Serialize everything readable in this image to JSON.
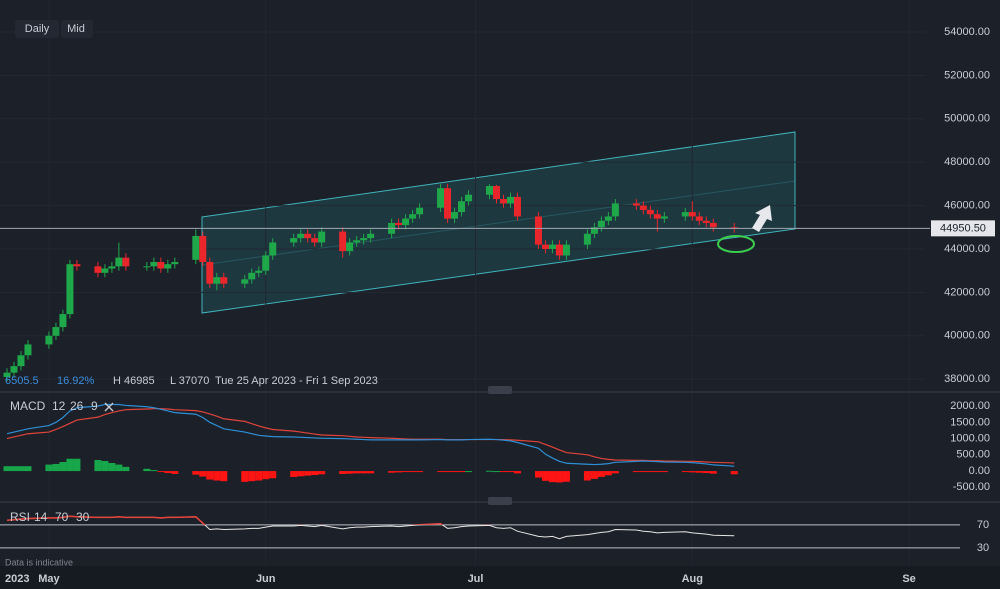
{
  "chart_data": [
    {
      "type": "candlestick",
      "interval_buttons": [
        "Daily",
        "Mid"
      ],
      "legend_values": [
        "6505.5",
        "16.92%",
        "H 46985",
        "L 37070"
      ],
      "date_range": "Tue 25 Apr 2023 - Fri 1 Sep 2023",
      "year_label": "2023",
      "note": "Data is indicative",
      "x": [
        115,
        116,
        117,
        118,
        121,
        122,
        123,
        124,
        125,
        128,
        129,
        130,
        131,
        132,
        135,
        136,
        137,
        138,
        139,
        142,
        143,
        144,
        145,
        146,
        149,
        150,
        151,
        152,
        153,
        156,
        157,
        158,
        159,
        160,
        163,
        164,
        165,
        166,
        167,
        170,
        171,
        172,
        173,
        174,
        177,
        178,
        179,
        180,
        181,
        184,
        185,
        186,
        187,
        188,
        191,
        192,
        193,
        194,
        195,
        198,
        199,
        200,
        201,
        202,
        205,
        206,
        207,
        208,
        209,
        212,
        213,
        214,
        215,
        216,
        219
      ],
      "open": [
        38100,
        38300,
        38600,
        39100,
        39600,
        40000,
        40400,
        41000,
        43300,
        43200,
        42900,
        43100,
        43200,
        43600,
        43200,
        43200,
        43400,
        43100,
        43300,
        43500,
        44600,
        43400,
        42400,
        42700,
        42400,
        42600,
        42900,
        43000,
        43700,
        44300,
        44500,
        44700,
        44500,
        44300,
        44800,
        43900,
        44300,
        44400,
        44500,
        44700,
        45200,
        45100,
        45400,
        45600,
        45900,
        46800,
        45400,
        45700,
        46200,
        46500,
        46900,
        46300,
        46100,
        46400,
        45500,
        44200,
        44000,
        44200,
        43700,
        44200,
        44700,
        45000,
        45300,
        45500,
        46100,
        46000,
        45800,
        45600,
        45400,
        45500,
        45700,
        45500,
        45300,
        45200,
        45000
      ],
      "high": [
        38500,
        38800,
        39300,
        39800,
        40200,
        40600,
        41200,
        43500,
        43500,
        43400,
        43300,
        43400,
        44300,
        43800,
        43400,
        43600,
        43600,
        43500,
        43600,
        44900,
        44800,
        43600,
        42900,
        42900,
        42800,
        43100,
        43200,
        43900,
        44500,
        44700,
        44900,
        44900,
        44700,
        45000,
        45000,
        44500,
        44600,
        44700,
        44900,
        45400,
        45400,
        45600,
        45800,
        46100,
        47000,
        47000,
        45900,
        46400,
        46700,
        46985,
        46950,
        46500,
        46600,
        46600,
        45700,
        44400,
        44400,
        44400,
        44400,
        44900,
        45200,
        45500,
        45700,
        46300,
        46300,
        46200,
        46000,
        45800,
        45700,
        45900,
        46200,
        45700,
        45500,
        45400,
        45200
      ],
      "low": [
        37900,
        38100,
        38400,
        38900,
        39400,
        39800,
        40200,
        40800,
        43000,
        42700,
        42700,
        42900,
        43000,
        43000,
        43000,
        43000,
        42900,
        42900,
        43100,
        43300,
        43200,
        42200,
        42100,
        42200,
        42200,
        42400,
        42700,
        42800,
        43500,
        44100,
        44300,
        44300,
        44100,
        44100,
        43600,
        43700,
        44100,
        44200,
        44300,
        44500,
        44900,
        44900,
        45200,
        45400,
        45700,
        45200,
        45200,
        45500,
        46000,
        46300,
        46100,
        45900,
        45900,
        45300,
        44000,
        43800,
        43800,
        43500,
        43500,
        44000,
        44500,
        44800,
        45100,
        45300,
        45800,
        45600,
        45400,
        44800,
        45200,
        45300,
        45300,
        45100,
        45000,
        44800,
        44750
      ],
      "close": [
        38300,
        38600,
        39100,
        39600,
        40000,
        40400,
        41000,
        43300,
        43200,
        42900,
        43100,
        43200,
        43600,
        43200,
        43200,
        43400,
        43100,
        43300,
        43400,
        44600,
        43400,
        42400,
        42700,
        42400,
        42600,
        42900,
        43000,
        43700,
        44300,
        44500,
        44700,
        44500,
        44300,
        44800,
        43900,
        44300,
        44400,
        44500,
        44700,
        45200,
        45100,
        45400,
        45600,
        45900,
        46800,
        45400,
        45700,
        46200,
        46500,
        46900,
        46300,
        46100,
        46400,
        45500,
        44200,
        44000,
        44200,
        43700,
        44200,
        44700,
        45000,
        45300,
        45500,
        46100,
        46000,
        45800,
        45600,
        45400,
        45500,
        45700,
        45500,
        45300,
        45200,
        45000,
        44950
      ],
      "up_color": "#1fa84a",
      "down_color": "#e8262b",
      "last_price": {
        "value": 44950.5,
        "label": "44950.50"
      },
      "xlim": [
        114,
        257
      ],
      "xticks": [
        {
          "value": 121,
          "label": "May"
        },
        {
          "value": 152,
          "label": "Jun"
        },
        {
          "value": 182,
          "label": "Jul"
        },
        {
          "value": 213,
          "label": "Aug"
        },
        {
          "value": 244,
          "label": "Se"
        }
      ],
      "ylim": [
        37500,
        55475
      ],
      "yticks": [
        {
          "value": 54000,
          "label": "54000.00"
        },
        {
          "value": 52000,
          "label": "52000.00"
        },
        {
          "value": 50000,
          "label": "50000.00"
        },
        {
          "value": 48000,
          "label": "48000.00"
        },
        {
          "value": 46000,
          "label": "46000.00"
        },
        {
          "value": 44000,
          "label": "44000.00"
        },
        {
          "value": 42000,
          "label": "42000.00"
        },
        {
          "value": 40000,
          "label": "40000.00"
        },
        {
          "value": 38000,
          "label": "38000.00"
        }
      ]
    },
    {
      "type": "macd",
      "name": "MACD",
      "params": [
        12,
        26,
        9
      ],
      "macd": [
        1150,
        1200,
        1250,
        1300,
        1400,
        1500,
        1650,
        1850,
        1950,
        2000,
        2050,
        2050,
        2050,
        2020,
        1980,
        1950,
        1900,
        1850,
        1800,
        1750,
        1650,
        1500,
        1400,
        1300,
        1200,
        1150,
        1100,
        1080,
        1060,
        1050,
        1040,
        1030,
        1020,
        1010,
        1000,
        990,
        980,
        970,
        960,
        960,
        960,
        960,
        960,
        960,
        970,
        960,
        960,
        960,
        970,
        980,
        970,
        950,
        930,
        880,
        700,
        520,
        400,
        300,
        240,
        210,
        200,
        210,
        230,
        270,
        300,
        310,
        300,
        290,
        280,
        270,
        260,
        240,
        220,
        190,
        150
      ],
      "signal": [
        1000,
        1050,
        1100,
        1150,
        1200,
        1280,
        1370,
        1470,
        1570,
        1660,
        1740,
        1800,
        1850,
        1890,
        1910,
        1920,
        1920,
        1910,
        1890,
        1860,
        1820,
        1760,
        1690,
        1610,
        1530,
        1460,
        1390,
        1330,
        1280,
        1230,
        1200,
        1170,
        1140,
        1110,
        1090,
        1070,
        1050,
        1040,
        1030,
        1010,
        1000,
        990,
        980,
        980,
        980,
        970,
        970,
        970,
        970,
        970,
        970,
        970,
        960,
        950,
        900,
        820,
        740,
        650,
        570,
        500,
        440,
        390,
        360,
        340,
        330,
        330,
        320,
        320,
        310,
        300,
        300,
        290,
        280,
        270,
        250
      ],
      "histogram": [
        150,
        150,
        150,
        150,
        200,
        220,
        280,
        380,
        380,
        340,
        310,
        250,
        200,
        130,
        70,
        30,
        -20,
        -60,
        -90,
        -110,
        -170,
        -260,
        -290,
        -310,
        -330,
        -310,
        -290,
        -250,
        -220,
        -180,
        -160,
        -140,
        -120,
        -100,
        -90,
        -80,
        -70,
        -70,
        -70,
        -50,
        -40,
        -30,
        -20,
        -20,
        -10,
        -10,
        -10,
        -10,
        0,
        10,
        0,
        -20,
        -30,
        -70,
        -200,
        -300,
        -340,
        -350,
        -330,
        -290,
        -240,
        -180,
        -130,
        -70,
        -30,
        -20,
        -20,
        -30,
        -30,
        -30,
        -40,
        -50,
        -60,
        -80,
        -100
      ],
      "macd_color": "#2f8fd6",
      "signal_color": "#e0443b",
      "hist_up_color": "#17a74a",
      "hist_down_color": "#ff1414",
      "ylim": [
        -890,
        2280
      ],
      "yticks": [
        {
          "value": 2000,
          "label": "2000.00"
        },
        {
          "value": 1500,
          "label": "1500.00"
        },
        {
          "value": 1000,
          "label": "1000.00"
        },
        {
          "value": 500,
          "label": "500.00"
        },
        {
          "value": 0,
          "label": "0.00"
        },
        {
          "value": -500,
          "label": "-500.00"
        }
      ]
    },
    {
      "type": "rsi",
      "name": "RSI",
      "params": [
        14,
        70,
        30
      ],
      "values": [
        78,
        79,
        80,
        81,
        82,
        82,
        83,
        85,
        84,
        83,
        83,
        83,
        84,
        83,
        83,
        83,
        82,
        83,
        83,
        84,
        73,
        62,
        63,
        62,
        63,
        64,
        64,
        66,
        68,
        68,
        69,
        68,
        67,
        69,
        63,
        65,
        66,
        66,
        67,
        68,
        67,
        68,
        69,
        70,
        72,
        64,
        65,
        67,
        68,
        69,
        65,
        64,
        65,
        59,
        50,
        49,
        50,
        46,
        50,
        53,
        55,
        57,
        58,
        62,
        61,
        59,
        58,
        56,
        57,
        58,
        56,
        55,
        54,
        52,
        51
      ],
      "color": "#e6e6e6",
      "overbought_color": "#e0443b",
      "ylim": [
        9,
        101
      ],
      "yticks": [
        70,
        30
      ]
    }
  ]
}
